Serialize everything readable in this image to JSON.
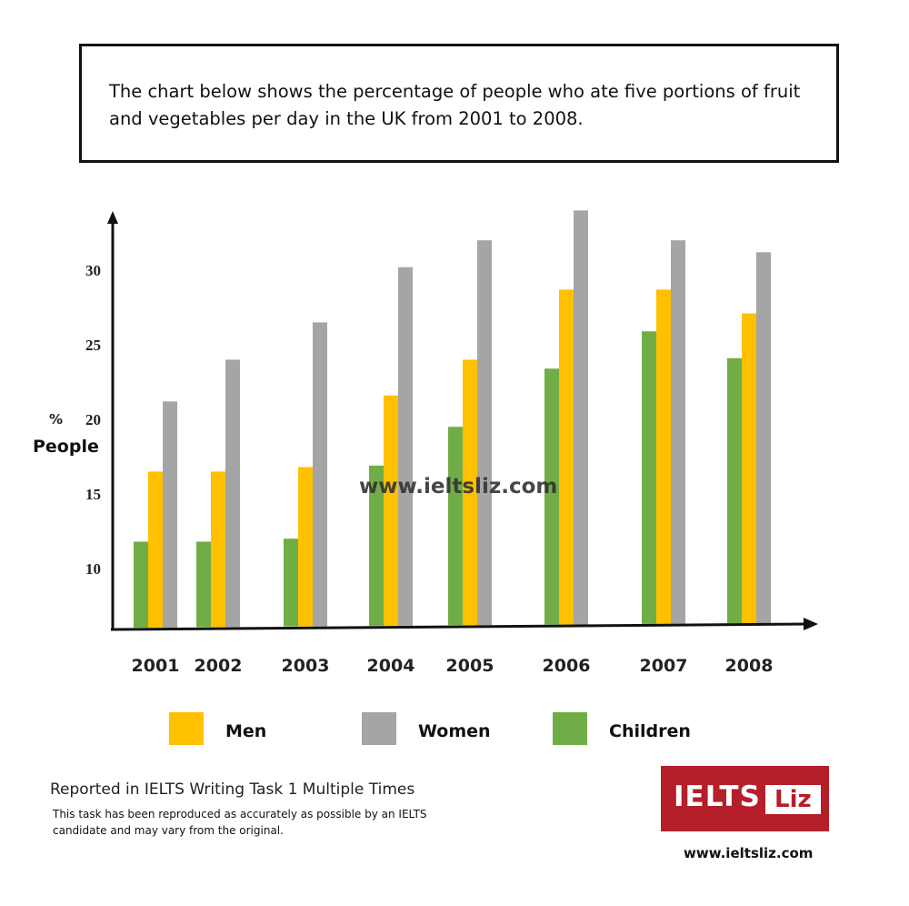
{
  "header": {
    "title": "The chart below shows the percentage of people who ate five portions of fruit and vegetables per day in the UK from 2001 to 2008."
  },
  "chart_data": {
    "type": "bar",
    "title": "The chart below shows the percentage of people who ate five portions of fruit and vegetables per day in the UK from 2001 to 2008.",
    "categories": [
      "2001",
      "2002",
      "2003",
      "2004",
      "2005",
      "2006",
      "2007",
      "2008"
    ],
    "series": [
      {
        "name": "Children",
        "color": "#70ad47",
        "values": [
          11.8,
          11.8,
          12,
          16.9,
          19.5,
          23.4,
          25.9,
          24.1
        ]
      },
      {
        "name": "Men",
        "color": "#ffc000",
        "values": [
          16.5,
          16.5,
          16.8,
          21.6,
          24,
          28.7,
          28.7,
          27.1
        ]
      },
      {
        "name": "Women",
        "color": "#a5a5a5",
        "values": [
          21.2,
          24,
          26.5,
          30.2,
          32,
          34,
          32,
          31.2
        ]
      }
    ],
    "legend_order": [
      "Men",
      "Women",
      "Children"
    ],
    "ylabel_unit": "%",
    "ylabel": "People",
    "xlabel": "",
    "yticks": [
      "10",
      "15",
      "20",
      "25",
      "30"
    ],
    "ylim": [
      6,
      36
    ],
    "grid": false,
    "legend": "bottom",
    "watermark": "www.ieltsliz.com"
  },
  "footer": {
    "note_title": "Reported in IELTS Writing Task 1 Multiple Times",
    "note_text": "This task has been reproduced as accurately as possible by an IELTS candidate and may vary from the original.",
    "logo_text_1": "IELTS",
    "logo_text_2": "Liz",
    "site": "www.ieltsliz.com"
  }
}
